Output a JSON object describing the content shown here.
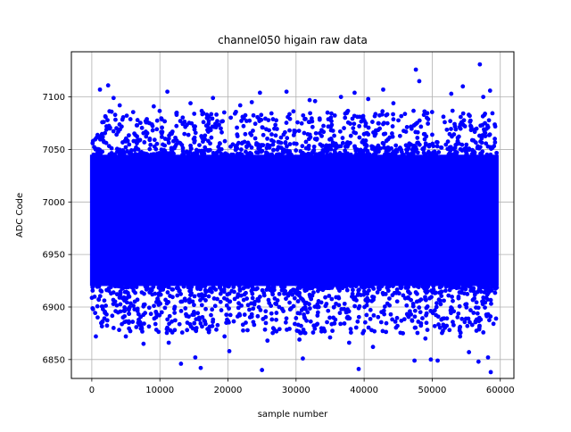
{
  "chart_data": {
    "type": "scatter",
    "title": "channel050 higain raw data",
    "xlabel": "sample number",
    "ylabel": "ADC Code",
    "xlim": [
      -3000,
      62000
    ],
    "ylim": [
      6832,
      7143
    ],
    "x_ticks": [
      0,
      10000,
      20000,
      30000,
      40000,
      50000,
      60000
    ],
    "x_tick_labels": [
      "0",
      "10000",
      "20000",
      "30000",
      "40000",
      "50000",
      "60000"
    ],
    "y_ticks": [
      6850,
      6900,
      6950,
      7000,
      7050,
      7100
    ],
    "y_tick_labels": [
      "6850",
      "6900",
      "6950",
      "7000",
      "7050",
      "7100"
    ],
    "grid": true,
    "legend": "none",
    "marker_color": "#0000ff",
    "series": [
      {
        "x_range": [
          0,
          59500
        ],
        "dense_band": [
          6920,
          7045
        ],
        "outlier_points": [
          [
            600,
            6872
          ],
          [
            1200,
            7107
          ],
          [
            2400,
            7111
          ],
          [
            3200,
            7099
          ],
          [
            4100,
            7092
          ],
          [
            5000,
            6872
          ],
          [
            7600,
            6865
          ],
          [
            9100,
            7091
          ],
          [
            11300,
            6866
          ],
          [
            11100,
            7105
          ],
          [
            13100,
            6846
          ],
          [
            14500,
            7094
          ],
          [
            15200,
            6852
          ],
          [
            16000,
            6842
          ],
          [
            17800,
            7099
          ],
          [
            19500,
            6872
          ],
          [
            20200,
            6858
          ],
          [
            21800,
            7092
          ],
          [
            23500,
            7095
          ],
          [
            24700,
            7104
          ],
          [
            25000,
            6840
          ],
          [
            25800,
            6868
          ],
          [
            28600,
            7105
          ],
          [
            30500,
            6869
          ],
          [
            31000,
            6851
          ],
          [
            32000,
            7097
          ],
          [
            32800,
            7096
          ],
          [
            35000,
            6871
          ],
          [
            36600,
            7100
          ],
          [
            37800,
            6866
          ],
          [
            38600,
            7104
          ],
          [
            39200,
            6841
          ],
          [
            40600,
            7098
          ],
          [
            41300,
            6862
          ],
          [
            42800,
            7107
          ],
          [
            44300,
            7094
          ],
          [
            45700,
            6875
          ],
          [
            47400,
            6849
          ],
          [
            47600,
            7126
          ],
          [
            48100,
            7115
          ],
          [
            49000,
            6870
          ],
          [
            49800,
            6850
          ],
          [
            50800,
            6849
          ],
          [
            52800,
            7103
          ],
          [
            54100,
            6872
          ],
          [
            54500,
            7110
          ],
          [
            55400,
            6857
          ],
          [
            56800,
            6848
          ],
          [
            57000,
            7131
          ],
          [
            57500,
            7100
          ],
          [
            58200,
            6852
          ],
          [
            58500,
            7106
          ],
          [
            58600,
            6838
          ],
          [
            59000,
            6884
          ]
        ]
      }
    ]
  }
}
